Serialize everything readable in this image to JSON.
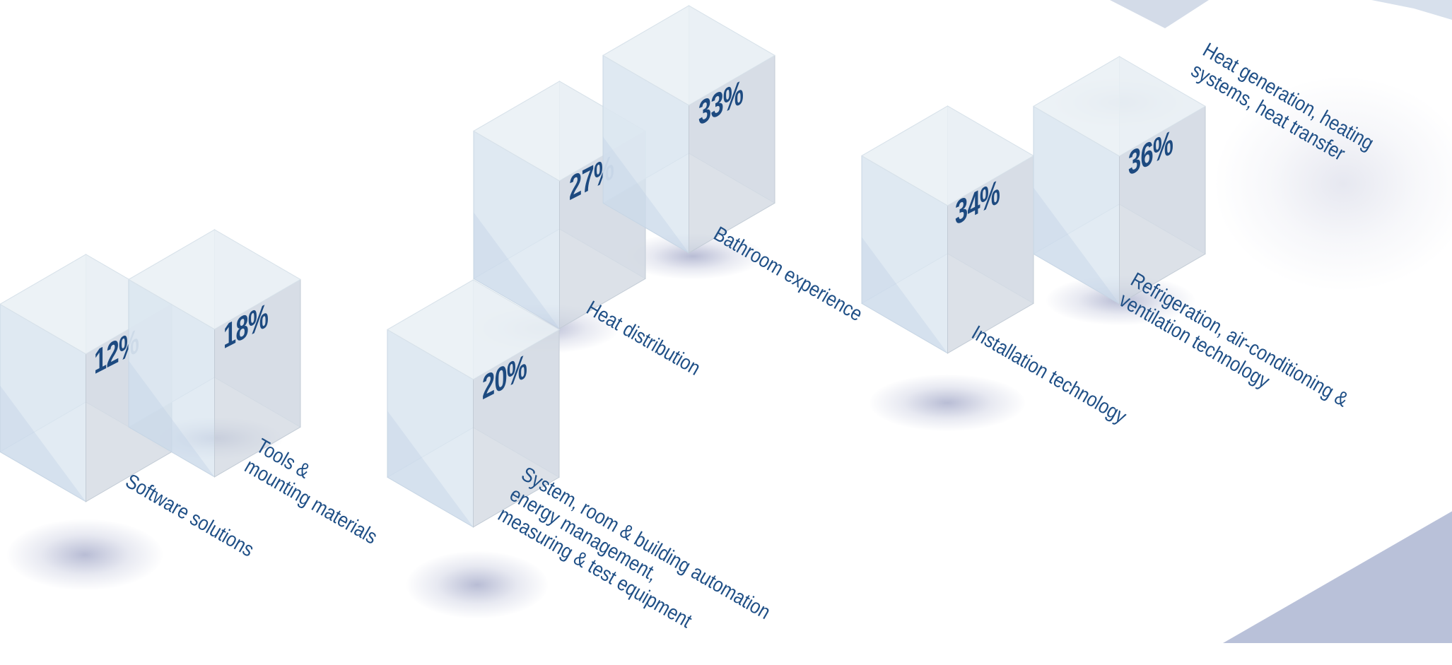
{
  "chart_data": {
    "type": "bar",
    "categories": [
      [
        "Software solutions"
      ],
      [
        "Tools &",
        "mounting materials"
      ],
      [
        "System, room & building automation",
        "energy management,",
        "measuring & test equipment"
      ],
      [
        "Heat distribution"
      ],
      [
        "Bathroom experience"
      ],
      [
        "Installation technology"
      ],
      [
        "Refrigeration, air-conditioning &",
        "ventilation technology"
      ],
      [
        "Heat generation, heating",
        "systems, heat transfer"
      ]
    ],
    "values": [
      12,
      18,
      20,
      27,
      33,
      34,
      36,
      null
    ],
    "value_labels": [
      "12%",
      "18%",
      "20%",
      "27%",
      "33%",
      "34%",
      "36%",
      ""
    ],
    "unit": "%",
    "colors": {
      "cube_top": "#e9f0f4",
      "cube_left": "#d7e3ee",
      "cube_right": "#cfd6df",
      "value_text": "#1d4a80",
      "label_text": "#1f4f86",
      "floor": "#b9c1d9"
    }
  }
}
